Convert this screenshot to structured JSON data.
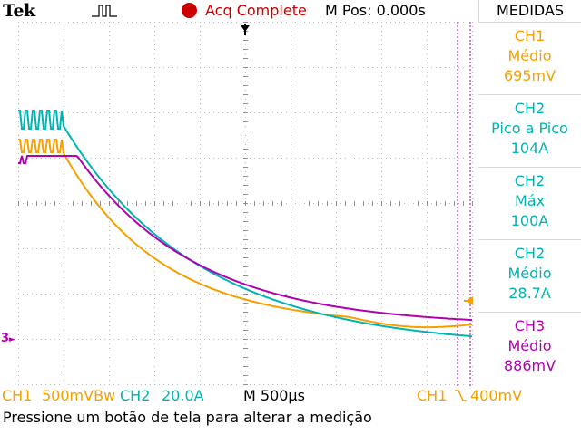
{
  "header": {
    "brand": "Tek",
    "trigger_icon": "trigger-state-icon",
    "status": "Acq Complete",
    "status_color": "#cc0000",
    "m_pos": "M Pos: 0.000s"
  },
  "sidebar": {
    "title": "MEDIDAS",
    "measurements": [
      {
        "channel": "CH1",
        "type": "Médio",
        "value": "695mV",
        "color": "#f5a000"
      },
      {
        "channel": "CH2",
        "type": "Pico a Pico",
        "value": "104A",
        "color": "#00b3b3"
      },
      {
        "channel": "CH2",
        "type": "Máx",
        "value": "100A",
        "color": "#00b3b3"
      },
      {
        "channel": "CH2",
        "type": "Médio",
        "value": "28.7A",
        "color": "#00b3b3"
      },
      {
        "channel": "CH3",
        "type": "Médio",
        "value": "886mV",
        "color": "#b000b0"
      }
    ]
  },
  "footer": {
    "ch1_label": "CH1",
    "ch1_scale": "500mVBw",
    "ch2_label": "CH2",
    "ch2_scale": "20.0A",
    "timebase": "M 500µs",
    "trigger_source": "CH1",
    "trigger_slope_icon": "falling-edge-icon",
    "trigger_level": "400mV"
  },
  "message": "Pressione um botão de tela para alterar a medição",
  "markers": {
    "ch3_ref": "3"
  },
  "colors": {
    "ch1": "#f5a000",
    "ch2": "#00b3b3",
    "ch3": "#b000b0",
    "grid": "#b0b0b0"
  }
}
